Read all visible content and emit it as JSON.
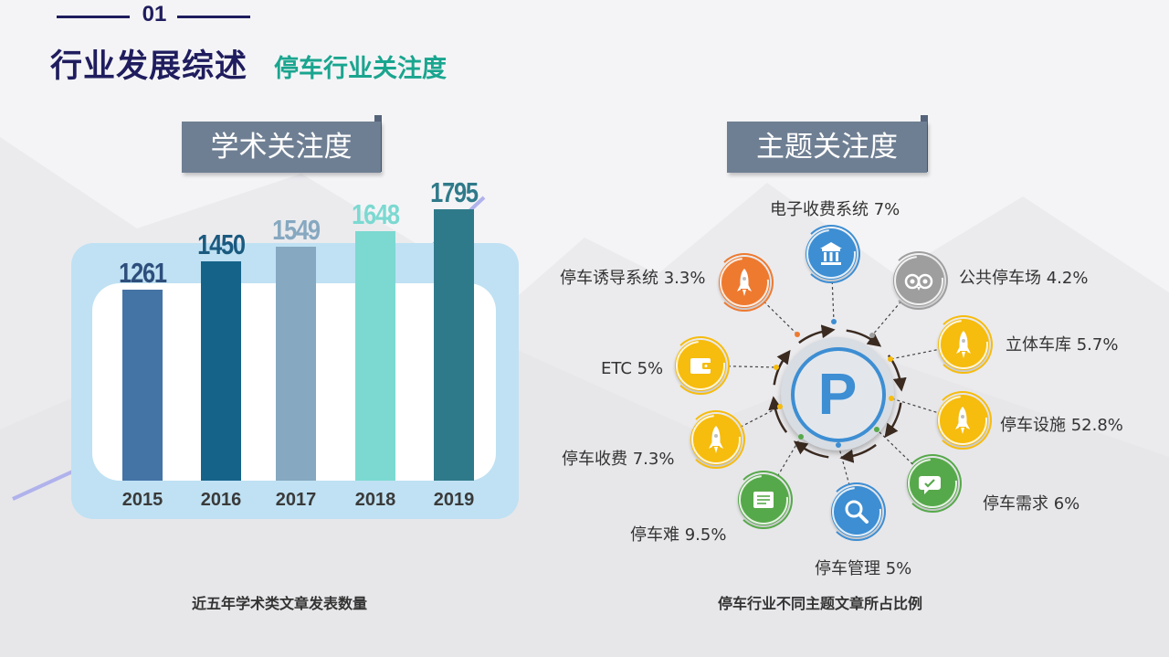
{
  "header": {
    "section_number": "01",
    "title": "行业发展综述",
    "subtitle": "停车行业关注度"
  },
  "academic": {
    "tag": "学术关注度",
    "caption": "近五年学术类文章发表数量",
    "chart_data": {
      "type": "bar",
      "categories": [
        "2015",
        "2016",
        "2017",
        "2018",
        "2019"
      ],
      "values": [
        1261,
        1450,
        1549,
        1648,
        1795
      ],
      "bar_colors": [
        "#4473a6",
        "#16638a",
        "#86a8c0",
        "#7bd9d1",
        "#2f7a8a"
      ],
      "label_colors": [
        "#2e4f7c",
        "#1b5a80",
        "#86a8c0",
        "#7bd9d1",
        "#2f7a8a"
      ],
      "ylim": [
        0,
        1900
      ],
      "title": "",
      "xlabel": "",
      "ylabel": ""
    }
  },
  "topics": {
    "tag": "主题关注度",
    "caption": "停车行业不同主题文章所占比例",
    "center_letter": "P",
    "items": [
      {
        "label": "电子收费系统 7%",
        "icon": "bank-icon",
        "color": "#3d8ed3"
      },
      {
        "label": "公共停车场 4.2%",
        "icon": "owl-icon",
        "color": "#9e9e9e"
      },
      {
        "label": "立体车库 5.7%",
        "icon": "rocket-icon",
        "color": "#f6bc0e"
      },
      {
        "label": "停车设施 52.8%",
        "icon": "rocket-icon",
        "color": "#f6bc0e"
      },
      {
        "label": "停车需求 6%",
        "icon": "chat-icon",
        "color": "#56a94a"
      },
      {
        "label": "停车管理 5%",
        "icon": "search-icon",
        "color": "#3d8ed3"
      },
      {
        "label": "停车难 9.5%",
        "icon": "note-icon",
        "color": "#56a94a"
      },
      {
        "label": "停车收费 7.3%",
        "icon": "rocket-icon",
        "color": "#f6bc0e"
      },
      {
        "label": "ETC 5%",
        "icon": "wallet-icon",
        "color": "#f6bc0e"
      },
      {
        "label": "停车诱导系统 3.3%",
        "icon": "rocket-icon",
        "color": "#ee7a30"
      }
    ]
  }
}
